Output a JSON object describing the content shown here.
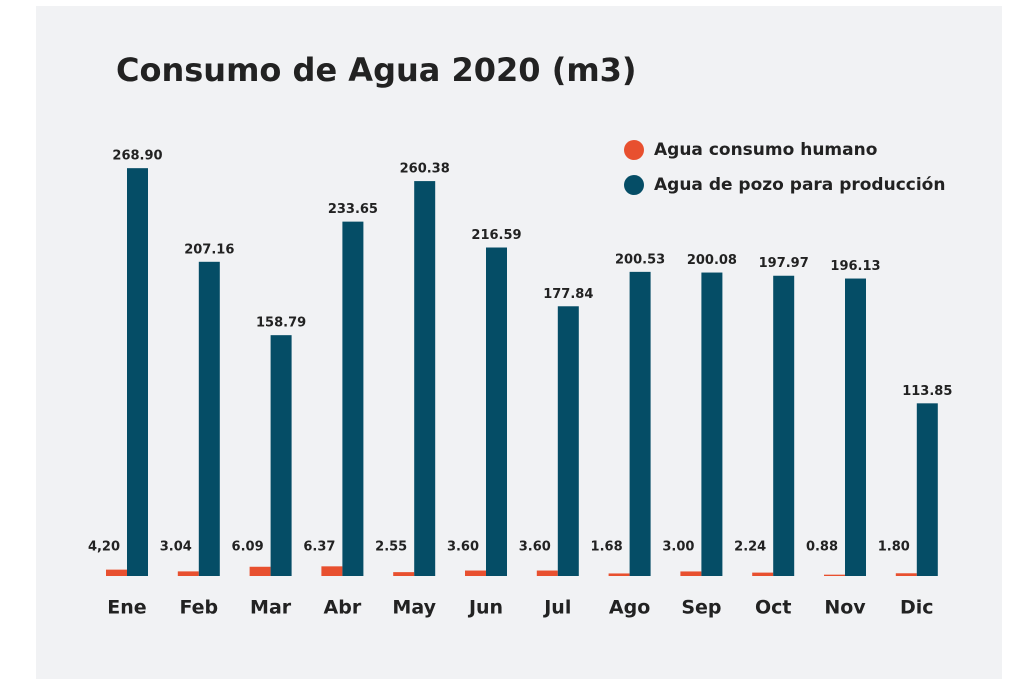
{
  "chart_data": {
    "type": "bar",
    "title": "Consumo de Agua 2020 (m3)",
    "categories": [
      "Ene",
      "Feb",
      "Mar",
      "Abr",
      "May",
      "Jun",
      "Jul",
      "Ago",
      "Sep",
      "Oct",
      "Nov",
      "Dic"
    ],
    "series": [
      {
        "name": "Agua consumo humano",
        "color": "#e8502f",
        "values": [
          4.2,
          3.04,
          6.09,
          6.37,
          2.55,
          3.6,
          3.6,
          1.68,
          3.0,
          2.24,
          0.88,
          1.8
        ],
        "value_labels": [
          "4,20",
          "3.04",
          "6.09",
          "6.37",
          "2.55",
          "3.60",
          "3.60",
          "1.68",
          "3.00",
          "2.24",
          "0.88",
          "1.80"
        ]
      },
      {
        "name": "Agua de pozo para producción",
        "color": "#054d66",
        "values": [
          268.9,
          207.16,
          158.79,
          233.65,
          260.38,
          216.59,
          177.84,
          200.53,
          200.08,
          197.97,
          196.13,
          113.85
        ],
        "value_labels": [
          "268.90",
          "207.16",
          "158.79",
          "233.65",
          "260.38",
          "216.59",
          "177.84",
          "200.53",
          "200.08",
          "197.97",
          "196.13",
          "113.85"
        ]
      }
    ],
    "ylim": [
      0,
      300
    ],
    "legend": "upper right"
  }
}
